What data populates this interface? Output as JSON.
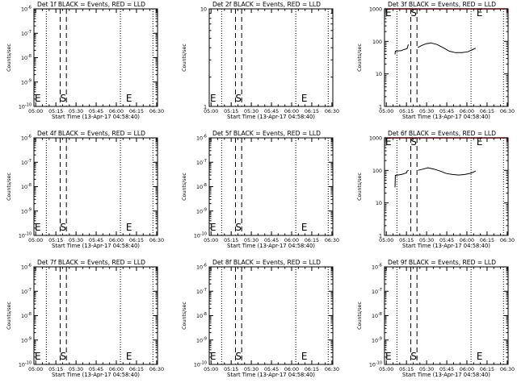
{
  "figure": {
    "x_axis_label": "Start Time (13-Apr-17 04:58:40)",
    "y_axis_label": "Counts/sec",
    "x_tick_labels": [
      "05:00",
      "05:15",
      "05:30",
      "05:45",
      "06:00",
      "06:15",
      "06:30"
    ],
    "event_markers": {
      "eclipse_label": "E",
      "saa_label": "S"
    },
    "colors": {
      "events": "#000000",
      "lld": "#ff0000"
    }
  },
  "chart_data": [
    {
      "type": "line",
      "panel": 1,
      "title": "Det 1f BLACK = Events, RED = LLD",
      "xlabel": "Start Time (13-Apr-17 04:58:40)",
      "ylabel": "Counts/sec",
      "x_ticks": [
        "05:00",
        "05:15",
        "05:30",
        "05:45",
        "06:00",
        "06:15",
        "06:30"
      ],
      "xlim_minutes": [
        0,
        40
      ],
      "y_scale": "log",
      "ylim": [
        1e-10,
        1e-06
      ],
      "y_ticks": [
        "10^-10",
        "10^-9",
        "10^-8",
        "10^-7",
        "10^-6"
      ],
      "y_tick_pow": [
        -10,
        -9,
        -8,
        -7,
        -6
      ],
      "markers": {
        "eclipse_labels_at": [
          0,
          29.5
        ],
        "saa_label_at": 9.5,
        "dotted_lines_at": [
          4,
          28,
          38.5
        ],
        "dashed_lines_at": [
          8.5,
          10.5
        ]
      },
      "series": []
    },
    {
      "type": "line",
      "panel": 2,
      "title": "Det 2f BLACK = Events, RED = LLD",
      "xlabel": "Start Time (13-Apr-17 04:58:40)",
      "ylabel": "Counts/sec",
      "x_ticks": [
        "05:00",
        "05:15",
        "05:30",
        "05:45",
        "06:00",
        "06:15",
        "06:30"
      ],
      "xlim_minutes": [
        0,
        40
      ],
      "y_scale": "log",
      "ylim": [
        1,
        10
      ],
      "y_ticks": [
        "1",
        "10"
      ],
      "y_tick_pow": [
        0,
        1
      ],
      "markers": {
        "eclipse_labels_at": [
          0,
          29.5
        ],
        "saa_label_at": 9.5,
        "dotted_lines_at": [
          4,
          28,
          38.5
        ],
        "dashed_lines_at": [
          8.5,
          10.5
        ]
      },
      "series": []
    },
    {
      "type": "line",
      "panel": 3,
      "title": "Det 3f BLACK = Events, RED = LLD",
      "xlabel": "Start Time (13-Apr-17 04:58:40)",
      "ylabel": "Counts/sec",
      "x_ticks": [
        "05:00",
        "05:15",
        "05:30",
        "05:45",
        "06:00",
        "06:15",
        "06:30"
      ],
      "xlim_minutes": [
        0,
        40
      ],
      "y_scale": "log",
      "ylim": [
        1,
        1000
      ],
      "y_ticks": [
        "1",
        "10",
        "100",
        "1000"
      ],
      "y_tick_pow": [
        0,
        1,
        2,
        3
      ],
      "markers": {
        "eclipse_labels_at": [
          0,
          29.5
        ],
        "saa_label_at": 9.5,
        "dotted_lines_at": [
          4,
          28,
          38.5
        ],
        "dashed_lines_at": [
          8.5,
          10.5
        ]
      },
      "series": [
        {
          "color": "#000000",
          "x": [
            3.4,
            3.5,
            5.5,
            6.0,
            6.5,
            7.3,
            7.7
          ],
          "y": [
            40,
            50,
            52,
            55,
            57,
            60,
            80
          ]
        },
        {
          "color": "#000000",
          "x": [
            10.8,
            12,
            13.5,
            15,
            17,
            19,
            21,
            23,
            25,
            27,
            28.5,
            29.5
          ],
          "y": [
            65,
            75,
            85,
            90,
            80,
            64,
            50,
            45,
            45,
            48,
            56,
            62
          ]
        },
        {
          "color": "#ff0000",
          "x": [
            0,
            40
          ],
          "y": [
            1000,
            1000
          ]
        }
      ]
    },
    {
      "type": "line",
      "panel": 4,
      "title": "Det 4f BLACK = Events, RED = LLD",
      "xlabel": "Start Time (13-Apr-17 04:58:40)",
      "ylabel": "Counts/sec",
      "x_ticks": [
        "05:00",
        "05:15",
        "05:30",
        "05:45",
        "06:00",
        "06:15",
        "06:30"
      ],
      "xlim_minutes": [
        0,
        40
      ],
      "y_scale": "log",
      "ylim": [
        1e-10,
        1e-06
      ],
      "y_ticks": [
        "10^-10",
        "10^-9",
        "10^-8",
        "10^-7",
        "10^-6"
      ],
      "y_tick_pow": [
        -10,
        -9,
        -8,
        -7,
        -6
      ],
      "markers": {
        "eclipse_labels_at": [
          0,
          29.5
        ],
        "saa_label_at": 9.5,
        "dotted_lines_at": [
          4,
          28,
          38.5
        ],
        "dashed_lines_at": [
          8.5,
          10.5
        ]
      },
      "series": []
    },
    {
      "type": "line",
      "panel": 5,
      "title": "Det 5f BLACK = Events, RED = LLD",
      "xlabel": "Start Time (13-Apr-17 04:58:40)",
      "ylabel": "Counts/sec",
      "x_ticks": [
        "05:00",
        "05:15",
        "05:30",
        "05:45",
        "06:00",
        "06:15",
        "06:30"
      ],
      "xlim_minutes": [
        0,
        40
      ],
      "y_scale": "log",
      "ylim": [
        1e-10,
        1e-06
      ],
      "y_ticks": [
        "10^-10",
        "10^-9",
        "10^-8",
        "10^-7",
        "10^-6"
      ],
      "y_tick_pow": [
        -10,
        -9,
        -8,
        -7,
        -6
      ],
      "markers": {
        "eclipse_labels_at": [
          0,
          29.5
        ],
        "saa_label_at": 9.5,
        "dotted_lines_at": [
          4,
          28,
          38.5
        ],
        "dashed_lines_at": [
          8.5,
          10.5
        ]
      },
      "series": []
    },
    {
      "type": "line",
      "panel": 6,
      "title": "Det 6f BLACK = Events, RED = LLD",
      "xlabel": "Start Time (13-Apr-17 04:58:40)",
      "ylabel": "Counts/sec",
      "x_ticks": [
        "05:00",
        "05:15",
        "05:30",
        "05:45",
        "06:00",
        "06:15",
        "06:30"
      ],
      "xlim_minutes": [
        0,
        40
      ],
      "y_scale": "log",
      "ylim": [
        1,
        1000
      ],
      "y_ticks": [
        "1",
        "10",
        "100",
        "1000"
      ],
      "y_tick_pow": [
        0,
        1,
        2,
        3
      ],
      "markers": {
        "eclipse_labels_at": [
          0,
          29.5
        ],
        "saa_label_at": 9.5,
        "dotted_lines_at": [
          4,
          28,
          38.5
        ],
        "dashed_lines_at": [
          8.5,
          10.5
        ]
      },
      "series": [
        {
          "color": "#000000",
          "x": [
            3.4,
            3.5,
            5.5,
            6.5,
            7.2,
            7.3,
            7.8
          ],
          "y": [
            30,
            70,
            75,
            80,
            85,
            95,
            100
          ]
        },
        {
          "color": "#000000",
          "x": [
            10.8,
            12.5,
            14,
            16,
            18,
            20,
            22,
            24,
            26,
            28,
            29.5
          ],
          "y": [
            100,
            110,
            120,
            110,
            95,
            80,
            75,
            72,
            75,
            82,
            95
          ]
        },
        {
          "color": "#ff0000",
          "x": [
            0,
            40
          ],
          "y": [
            1000,
            1000
          ]
        }
      ]
    },
    {
      "type": "line",
      "panel": 7,
      "title": "Det 7f BLACK = Events, RED = LLD",
      "xlabel": "Start Time (13-Apr-17 04:58:40)",
      "ylabel": "Counts/sec",
      "x_ticks": [
        "05:00",
        "05:15",
        "05:30",
        "05:45",
        "06:00",
        "06:15",
        "06:30"
      ],
      "xlim_minutes": [
        0,
        40
      ],
      "y_scale": "log",
      "ylim": [
        1e-10,
        1e-06
      ],
      "y_ticks": [
        "10^-10",
        "10^-9",
        "10^-8",
        "10^-7",
        "10^-6"
      ],
      "y_tick_pow": [
        -10,
        -9,
        -8,
        -7,
        -6
      ],
      "markers": {
        "eclipse_labels_at": [
          0,
          29.5
        ],
        "saa_label_at": 9.5,
        "dotted_lines_at": [
          4,
          28,
          38.5
        ],
        "dashed_lines_at": [
          8.5,
          10.5
        ]
      },
      "series": []
    },
    {
      "type": "line",
      "panel": 8,
      "title": "Det 8f BLACK = Events, RED = LLD",
      "xlabel": "Start Time (13-Apr-17 04:58:40)",
      "ylabel": "Counts/sec",
      "x_ticks": [
        "05:00",
        "05:15",
        "05:30",
        "05:45",
        "06:00",
        "06:15",
        "06:30"
      ],
      "xlim_minutes": [
        0,
        40
      ],
      "y_scale": "log",
      "ylim": [
        1e-10,
        1e-06
      ],
      "y_ticks": [
        "10^-10",
        "10^-9",
        "10^-8",
        "10^-7",
        "10^-6"
      ],
      "y_tick_pow": [
        -10,
        -9,
        -8,
        -7,
        -6
      ],
      "markers": {
        "eclipse_labels_at": [
          0,
          29.5
        ],
        "saa_label_at": 9.5,
        "dotted_lines_at": [
          4,
          28,
          38.5
        ],
        "dashed_lines_at": [
          8.5,
          10.5
        ]
      },
      "series": []
    },
    {
      "type": "line",
      "panel": 9,
      "title": "Det 9f BLACK = Events, RED = LLD",
      "xlabel": "Start Time (13-Apr-17 04:58:40)",
      "ylabel": "Counts/sec",
      "x_ticks": [
        "05:00",
        "05:15",
        "05:30",
        "05:45",
        "06:00",
        "06:15",
        "06:30"
      ],
      "xlim_minutes": [
        0,
        40
      ],
      "y_scale": "log",
      "ylim": [
        1e-10,
        1e-06
      ],
      "y_ticks": [
        "10^-10",
        "10^-9",
        "10^-8",
        "10^-7",
        "10^-6"
      ],
      "y_tick_pow": [
        -10,
        -9,
        -8,
        -7,
        -6
      ],
      "markers": {
        "eclipse_labels_at": [
          0,
          29.5
        ],
        "saa_label_at": 9.5,
        "dotted_lines_at": [
          4,
          28,
          38.5
        ],
        "dashed_lines_at": [
          8.5,
          10.5
        ]
      },
      "series": []
    }
  ]
}
